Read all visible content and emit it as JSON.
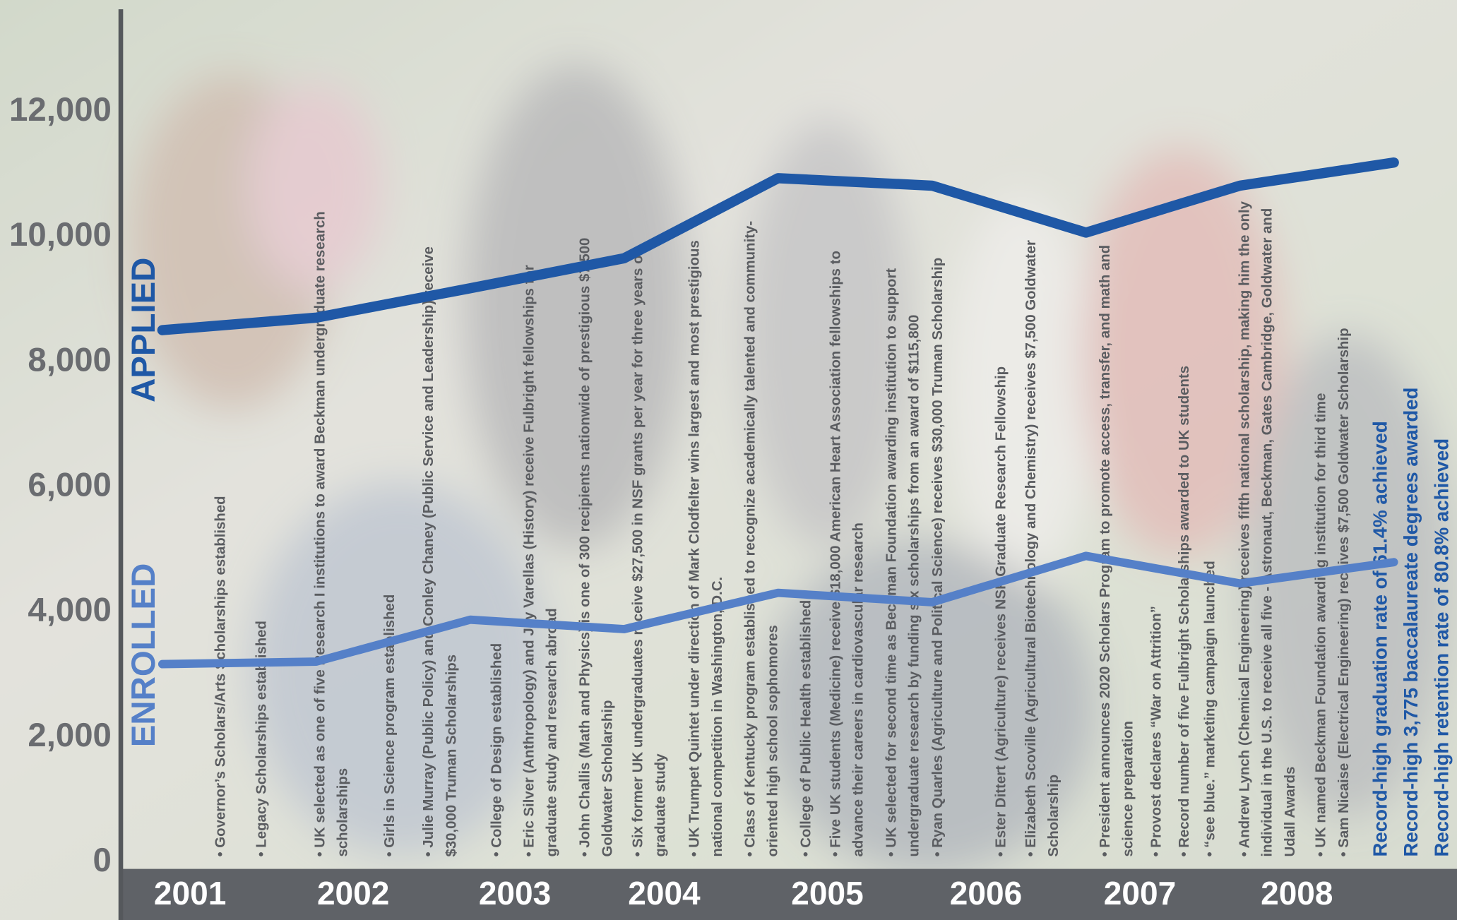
{
  "chart_data": {
    "type": "line",
    "x": [
      2001,
      2002,
      2003,
      2004,
      2005,
      2006,
      2007,
      2008,
      2009
    ],
    "xlim": [
      2000.73,
      2009.41
    ],
    "xticks": [
      {
        "value": 2001.18,
        "label": "2001"
      },
      {
        "value": 2002.24,
        "label": "2002"
      },
      {
        "value": 2003.29,
        "label": "2003"
      },
      {
        "value": 2004.26,
        "label": "2004"
      },
      {
        "value": 2005.32,
        "label": "2005"
      },
      {
        "value": 2006.35,
        "label": "2006"
      },
      {
        "value": 2007.35,
        "label": "2007"
      },
      {
        "value": 2008.37,
        "label": "2008"
      }
    ],
    "ylim": [
      0,
      13600
    ],
    "yticks": [
      0,
      {
        "value": 2000,
        "label": "2,000"
      },
      {
        "value": 4000,
        "label": "4,000"
      },
      {
        "value": 6000,
        "label": "6,000"
      },
      {
        "value": 8000,
        "label": "8,000"
      },
      {
        "value": 10000,
        "label": "10,000"
      },
      {
        "value": 12000,
        "label": "12,000"
      }
    ],
    "grid": false,
    "series": [
      {
        "name": "APPLIED",
        "color": "#1f58a6",
        "values": [
          8510,
          8710,
          9180,
          9660,
          10940,
          10820,
          10070,
          10820,
          11190
        ]
      },
      {
        "name": "ENROLLED",
        "color": "#5580c8",
        "values": [
          3170,
          3210,
          3880,
          3730,
          4310,
          4160,
          4900,
          4460,
          4800
        ]
      }
    ],
    "annotations": [
      [
        "• Governor’s Scholars/Arts Scholarships established"
      ],
      [
        "• Legacy Scholarships established"
      ],
      [
        "• UK selected as one of five Research I institutions to award Beckman undergraduate research",
        "scholarships"
      ],
      [
        "• Girls in Science program established"
      ],
      [
        "• Julie Murray (Public Policy) and Conley Chaney (Public Service and Leadership) receive",
        "$30,000 Truman Scholarships"
      ],
      [
        "• College of Design established"
      ],
      [
        "• Eric Silver (Anthropology) and Jay Varellas (History) receive Fulbright fellowships for",
        "graduate study and research abroad"
      ],
      [
        "• John Challis (Math and Physics) is one of 300 recipients nationwide of prestigious $7,500",
        "Goldwater Scholarship"
      ],
      [
        "• Six former UK undergraduates receive $27,500 in NSF grants per year for three years of",
        "graduate study"
      ],
      [
        "• UK Trumpet Quintet under direction of Mark Clodfelter wins largest and most prestigious",
        "national competition in Washington, D.C."
      ],
      [
        "• Class of Kentucky program established to recognize academically talented and community-",
        "oriented high school sophomores"
      ],
      [
        "• College of Public Health established"
      ],
      [
        "• Five UK students (Medicine) receive $18,000 American Heart Association fellowships to",
        "advance their careers in cardiovascular research"
      ],
      [
        "• UK selected for second time as Beckman Foundation awarding institution to support",
        "undergraduate research by funding six scholarships from an award of $115,800"
      ],
      [
        "• Ryan Quarles (Agriculture and Political Science) receives $30,000 Truman Scholarship"
      ],
      [
        "• Ester Dittert (Agriculture) receives NSF Graduate Research Fellowship"
      ],
      [
        "• Elizabeth Scoville (Agricultural Biotechnology and Chemistry) receives $7,500 Goldwater",
        "Scholarship"
      ],
      [
        "• President announces 2020 Scholars Program to promote access, transfer, and math and",
        "science preparation"
      ],
      [
        "• Provost declares “War on Attrition”"
      ],
      [
        "• Record number of five Fulbright Scholarships awarded to UK students"
      ],
      [
        "• “see blue.” marketing campaign launched"
      ],
      [
        "• Andrew Lynch (Chemical Engineering) receives fifth national scholarship, making him the only",
        "individual in the U.S. to receive all five - Astronaut, Beckman, Gates Cambridge, Goldwater and",
        "Udall Awards"
      ],
      [
        "• UK named Beckman Foundation awarding institution for third time"
      ],
      [
        "• Sam Nicaise (Electrical Engineering) receives $7,500 Goldwater Scholarship"
      ]
    ],
    "highlights": [
      "Record-high graduation rate of 61.4% achieved",
      "Record-high 3,775 baccalaureate degrees awarded",
      "Record-high retention rate of 80.8% achieved"
    ],
    "highlight_color": "#1f58a6"
  }
}
